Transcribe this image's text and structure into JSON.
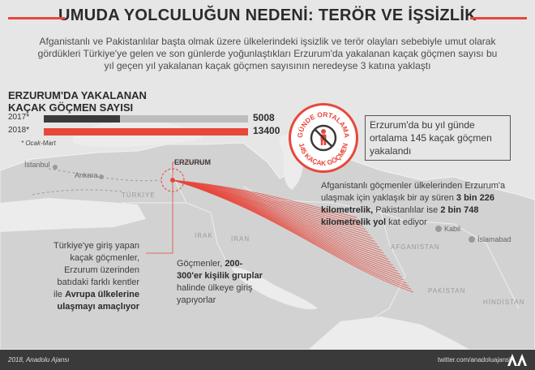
{
  "title": "UMUDA YOLCULUĞUN NEDENİ: TERÖR VE İŞSİZLİK",
  "intro": "Afganistanlı ve Pakistanlılar başta olmak üzere ülkelerindeki işsizlik ve terör olayları sebebiyle umut olarak gördükleri Türkiye'ye gelen ve son günlerde yoğunlaştıkları Erzurum'da yakalanan kaçak göçmen sayısı bu yıl geçen yıl yakalanan kaçak göçmen sayısının neredeyse 3 katına yaklaştı",
  "chart_data": {
    "type": "bar",
    "title_lines": [
      "ERZURUM'DA YAKALANAN",
      "KAÇAK GÖÇMEN SAYISI"
    ],
    "categories": [
      "2017*",
      "2018*"
    ],
    "values": [
      5008,
      13400
    ],
    "value_labels": [
      "5008",
      "13400"
    ],
    "colors": [
      "#3a3a3a",
      "#e8473b"
    ],
    "xlim": [
      0,
      13400
    ],
    "footnote": "* Ocak-Mart"
  },
  "badge": {
    "top_text": "GÜNDE ORTALAMA",
    "bottom_text": "145 KAÇAK GÖÇMEN",
    "icon": "crossed-person-icon"
  },
  "badge_note": "Erzurum'da bu yıl günde ortalama 145 kaçak göçmen yakalandı",
  "route_note": {
    "prefix": "Afganistanlı göçmenler ülkelerinden Erzurum'a ulaşmak için yaklaşık bir ay süren ",
    "bold1": "3 bin 226 kilometrelik,",
    "middle": " Pakistanlılar ise ",
    "bold2": "2 bin 748 kilometrelik yol",
    "suffix": " kat ediyor"
  },
  "europe_note": {
    "prefix": "Türkiye'ye giriş yapan kaçak göçmenler, Erzurum üzerinden batıdaki farklı kentler ile ",
    "bold": "Avrupa ülkelerine ulaşmayı amaçlıyor"
  },
  "groups_note": {
    "prefix": "Göçmenler, ",
    "bold": "200-300'er kişilik gruplar",
    "suffix": " halinde ülkeye giriş yapıyorlar"
  },
  "map": {
    "cities": [
      "İstanbul",
      "Ankara",
      "ERZURUM",
      "Kabil",
      "İslamabad"
    ],
    "countries": [
      "TÜRKİYE",
      "IRAK",
      "İRAN",
      "AFGANİSTAN",
      "PAKİSTAN",
      "HİNDİSTAN"
    ],
    "route_color": "#e8473b"
  },
  "footer": {
    "credit": "2018, Anadolu Ajansı",
    "twitter": "twitter.com/anadoluajansi",
    "logo_icon": "aa-logo-icon"
  }
}
